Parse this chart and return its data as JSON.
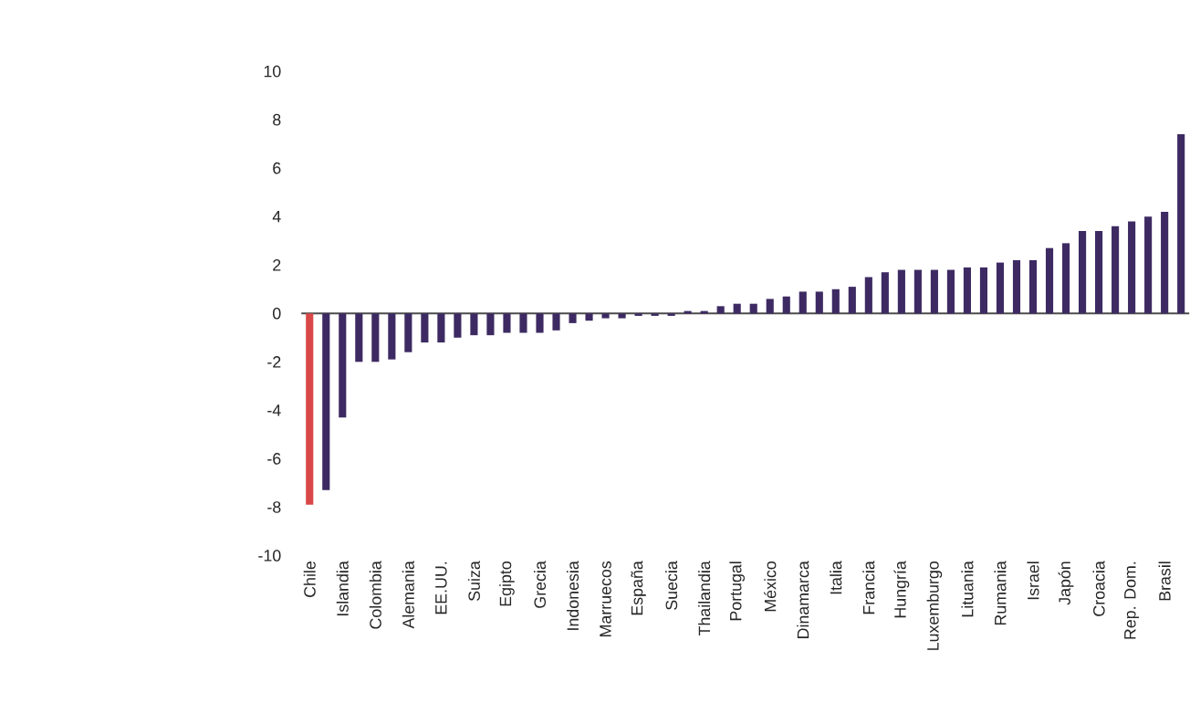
{
  "chart_data": {
    "type": "bar",
    "categories": [
      "Chile",
      null,
      "Islandia",
      null,
      "Colombia",
      null,
      "Alemania",
      null,
      "EE.UU.",
      null,
      "Suiza",
      null,
      "Egipto",
      null,
      "Grecia",
      null,
      "Indonesia",
      null,
      "Marruecos",
      null,
      "España",
      null,
      "Suecia",
      null,
      "Thailandia",
      null,
      "Portugal",
      null,
      "México",
      null,
      "Dinamarca",
      null,
      "Italia",
      null,
      "Francia",
      null,
      "Hungría",
      null,
      "Luxemburgo",
      null,
      "Lituania",
      null,
      "Rumania",
      null,
      "Israel",
      null,
      "Japón",
      null,
      "Croacia",
      null,
      "Rep. Dom.",
      null,
      "Brasil",
      null
    ],
    "values": [
      -7.9,
      -7.3,
      -4.3,
      -2.0,
      -2.0,
      -1.9,
      -1.6,
      -1.2,
      -1.2,
      -1.0,
      -0.9,
      -0.9,
      -0.8,
      -0.8,
      -0.8,
      -0.7,
      -0.4,
      -0.3,
      -0.2,
      -0.2,
      -0.1,
      -0.1,
      -0.1,
      0.1,
      0.1,
      0.3,
      0.4,
      0.4,
      0.6,
      0.7,
      0.9,
      0.9,
      1.0,
      1.1,
      1.5,
      1.7,
      1.8,
      1.8,
      1.8,
      1.8,
      1.9,
      1.9,
      2.1,
      2.2,
      2.2,
      2.7,
      2.9,
      3.4,
      3.4,
      3.6,
      3.8,
      4.0,
      4.2,
      7.4
    ],
    "colors": [
      "#d94848",
      "#3d2a62",
      "#3d2a62",
      "#3d2a62",
      "#3d2a62",
      "#3d2a62",
      "#3d2a62",
      "#3d2a62",
      "#3d2a62",
      "#3d2a62",
      "#3d2a62",
      "#3d2a62",
      "#3d2a62",
      "#3d2a62",
      "#3d2a62",
      "#3d2a62",
      "#3d2a62",
      "#3d2a62",
      "#3d2a62",
      "#3d2a62",
      "#3d2a62",
      "#3d2a62",
      "#3d2a62",
      "#3d2a62",
      "#3d2a62",
      "#3d2a62",
      "#3d2a62",
      "#3d2a62",
      "#3d2a62",
      "#3d2a62",
      "#3d2a62",
      "#3d2a62",
      "#3d2a62",
      "#3d2a62",
      "#3d2a62",
      "#3d2a62",
      "#3d2a62",
      "#3d2a62",
      "#3d2a62",
      "#3d2a62",
      "#3d2a62",
      "#3d2a62",
      "#3d2a62",
      "#3d2a62",
      "#3d2a62",
      "#3d2a62",
      "#3d2a62",
      "#3d2a62",
      "#3d2a62",
      "#3d2a62",
      "#3d2a62",
      "#3d2a62",
      "#3d2a62",
      "#3d2a62"
    ],
    "ylim": [
      -10,
      10
    ],
    "yticks": [
      -10,
      -8,
      -6,
      -4,
      -2,
      0,
      2,
      4,
      6,
      8,
      10
    ]
  }
}
